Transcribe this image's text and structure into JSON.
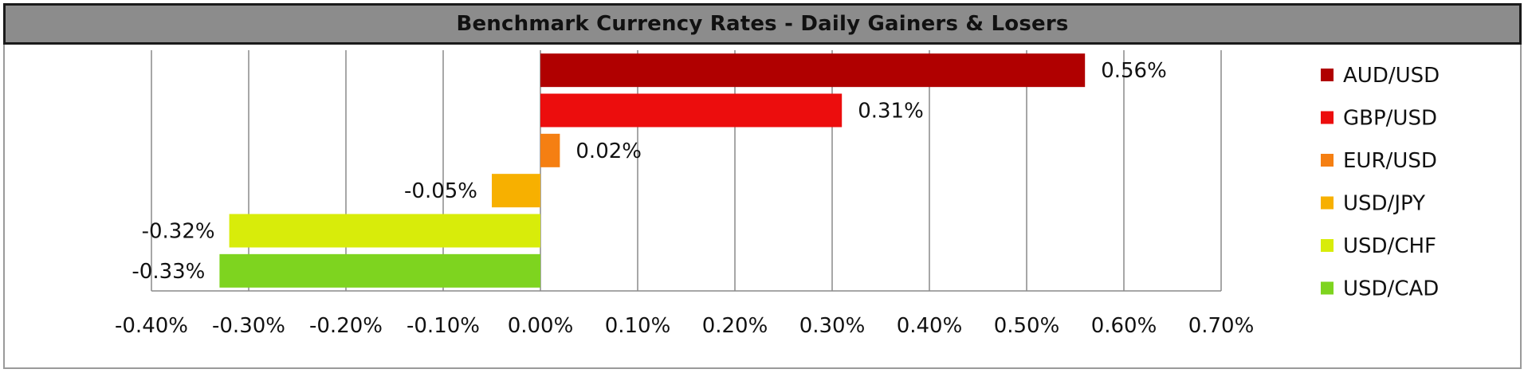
{
  "chart_data": {
    "type": "bar",
    "orientation": "horizontal",
    "title": "Benchmark Currency Rates - Daily Gainers & Losers",
    "xlabel": "",
    "ylabel": "",
    "xlim": [
      -0.4,
      0.7
    ],
    "x_ticks": [
      -0.4,
      -0.3,
      -0.2,
      -0.1,
      0.0,
      0.1,
      0.2,
      0.3,
      0.4,
      0.5,
      0.6,
      0.7
    ],
    "x_tick_labels": [
      "-0.40%",
      "-0.30%",
      "-0.20%",
      "-0.10%",
      "0.00%",
      "0.10%",
      "0.20%",
      "0.30%",
      "0.40%",
      "0.50%",
      "0.60%",
      "0.70%"
    ],
    "grid": "vertical",
    "legend_position": "right",
    "series": [
      {
        "name": "AUD/USD",
        "value": 0.56,
        "label": "0.56%",
        "color": "#b00000"
      },
      {
        "name": "GBP/USD",
        "value": 0.31,
        "label": "0.31%",
        "color": "#ec0d0d"
      },
      {
        "name": "EUR/USD",
        "value": 0.02,
        "label": "0.02%",
        "color": "#f57f12"
      },
      {
        "name": "USD/JPY",
        "value": -0.05,
        "label": "-0.05%",
        "color": "#f7b000"
      },
      {
        "name": "USD/CHF",
        "value": -0.32,
        "label": "-0.32%",
        "color": "#d8ec0a"
      },
      {
        "name": "USD/CAD",
        "value": -0.33,
        "label": "-0.33%",
        "color": "#7ed41f"
      }
    ]
  }
}
